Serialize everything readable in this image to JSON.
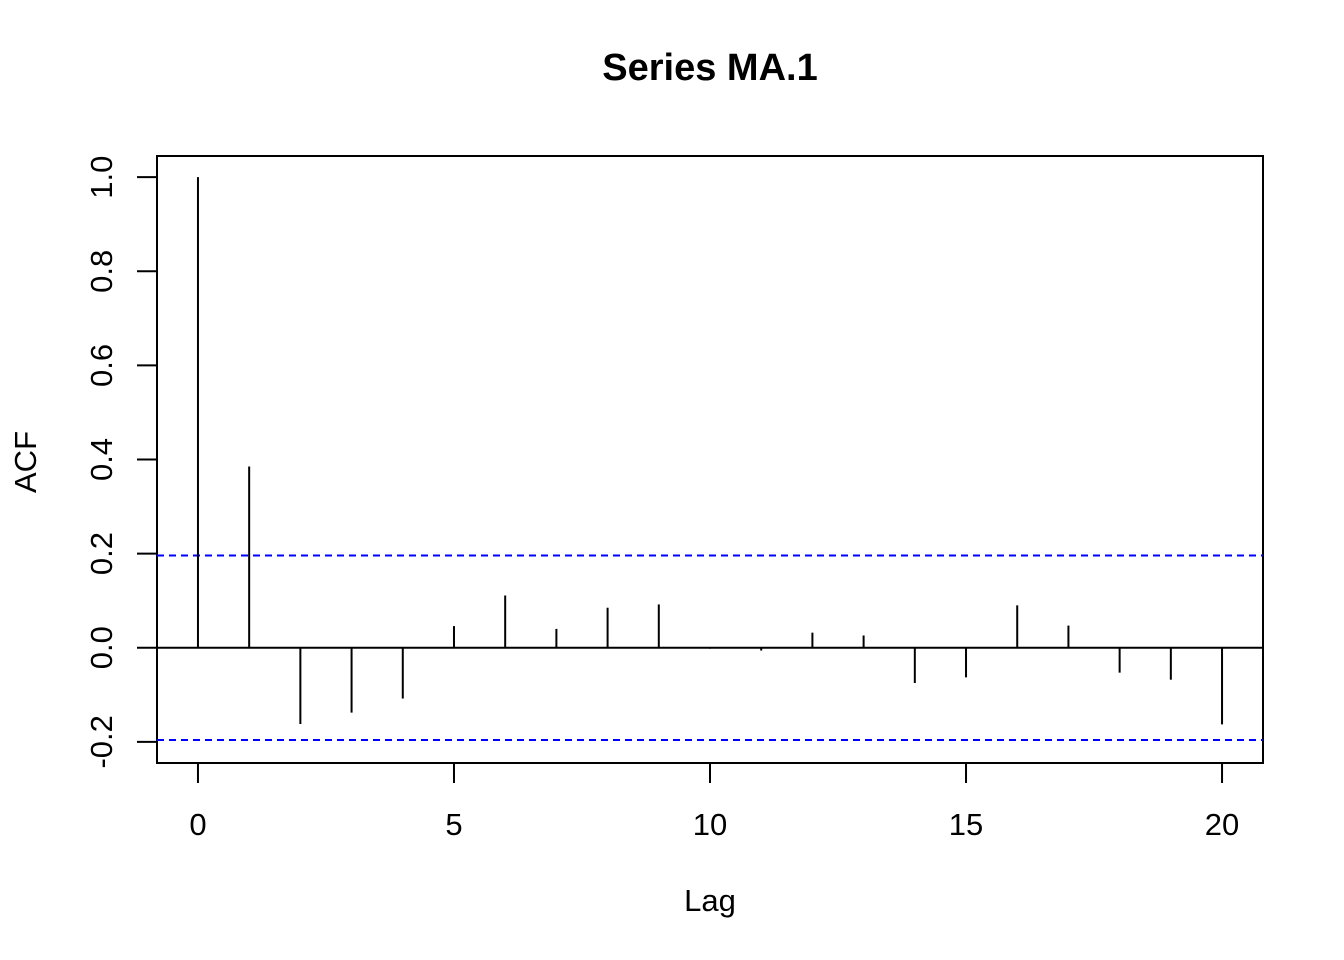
{
  "chart_data": {
    "type": "bar",
    "title": "Series  MA.1",
    "xlabel": "Lag",
    "ylabel": "ACF",
    "x": [
      0,
      1,
      2,
      3,
      4,
      5,
      6,
      7,
      8,
      9,
      10,
      11,
      12,
      13,
      14,
      15,
      16,
      17,
      18,
      19,
      20
    ],
    "values": [
      1.0,
      0.385,
      -0.162,
      -0.138,
      -0.108,
      0.046,
      0.111,
      0.04,
      0.085,
      0.092,
      -0.002,
      -0.006,
      0.032,
      0.026,
      -0.075,
      -0.063,
      0.09,
      0.047,
      -0.053,
      -0.068,
      -0.163
    ],
    "confidence_bounds": [
      0.196,
      -0.196
    ],
    "xlim": [
      -0.8,
      20.8
    ],
    "ylim": [
      -0.245,
      1.045
    ],
    "xticks": [
      0,
      5,
      10,
      15,
      20
    ],
    "yticks": [
      -0.2,
      0.0,
      0.2,
      0.4,
      0.6,
      0.8,
      1.0
    ],
    "xtick_labels": [
      "0",
      "5",
      "10",
      "15",
      "20"
    ],
    "ytick_labels": [
      "-0.2",
      "0.0",
      "0.2",
      "0.4",
      "0.6",
      "0.8",
      "1.0"
    ],
    "zero_line": true,
    "grid": false,
    "colors": {
      "bars": "#000000",
      "confidence_lines": "#0000ff",
      "axes": "#000000"
    }
  }
}
